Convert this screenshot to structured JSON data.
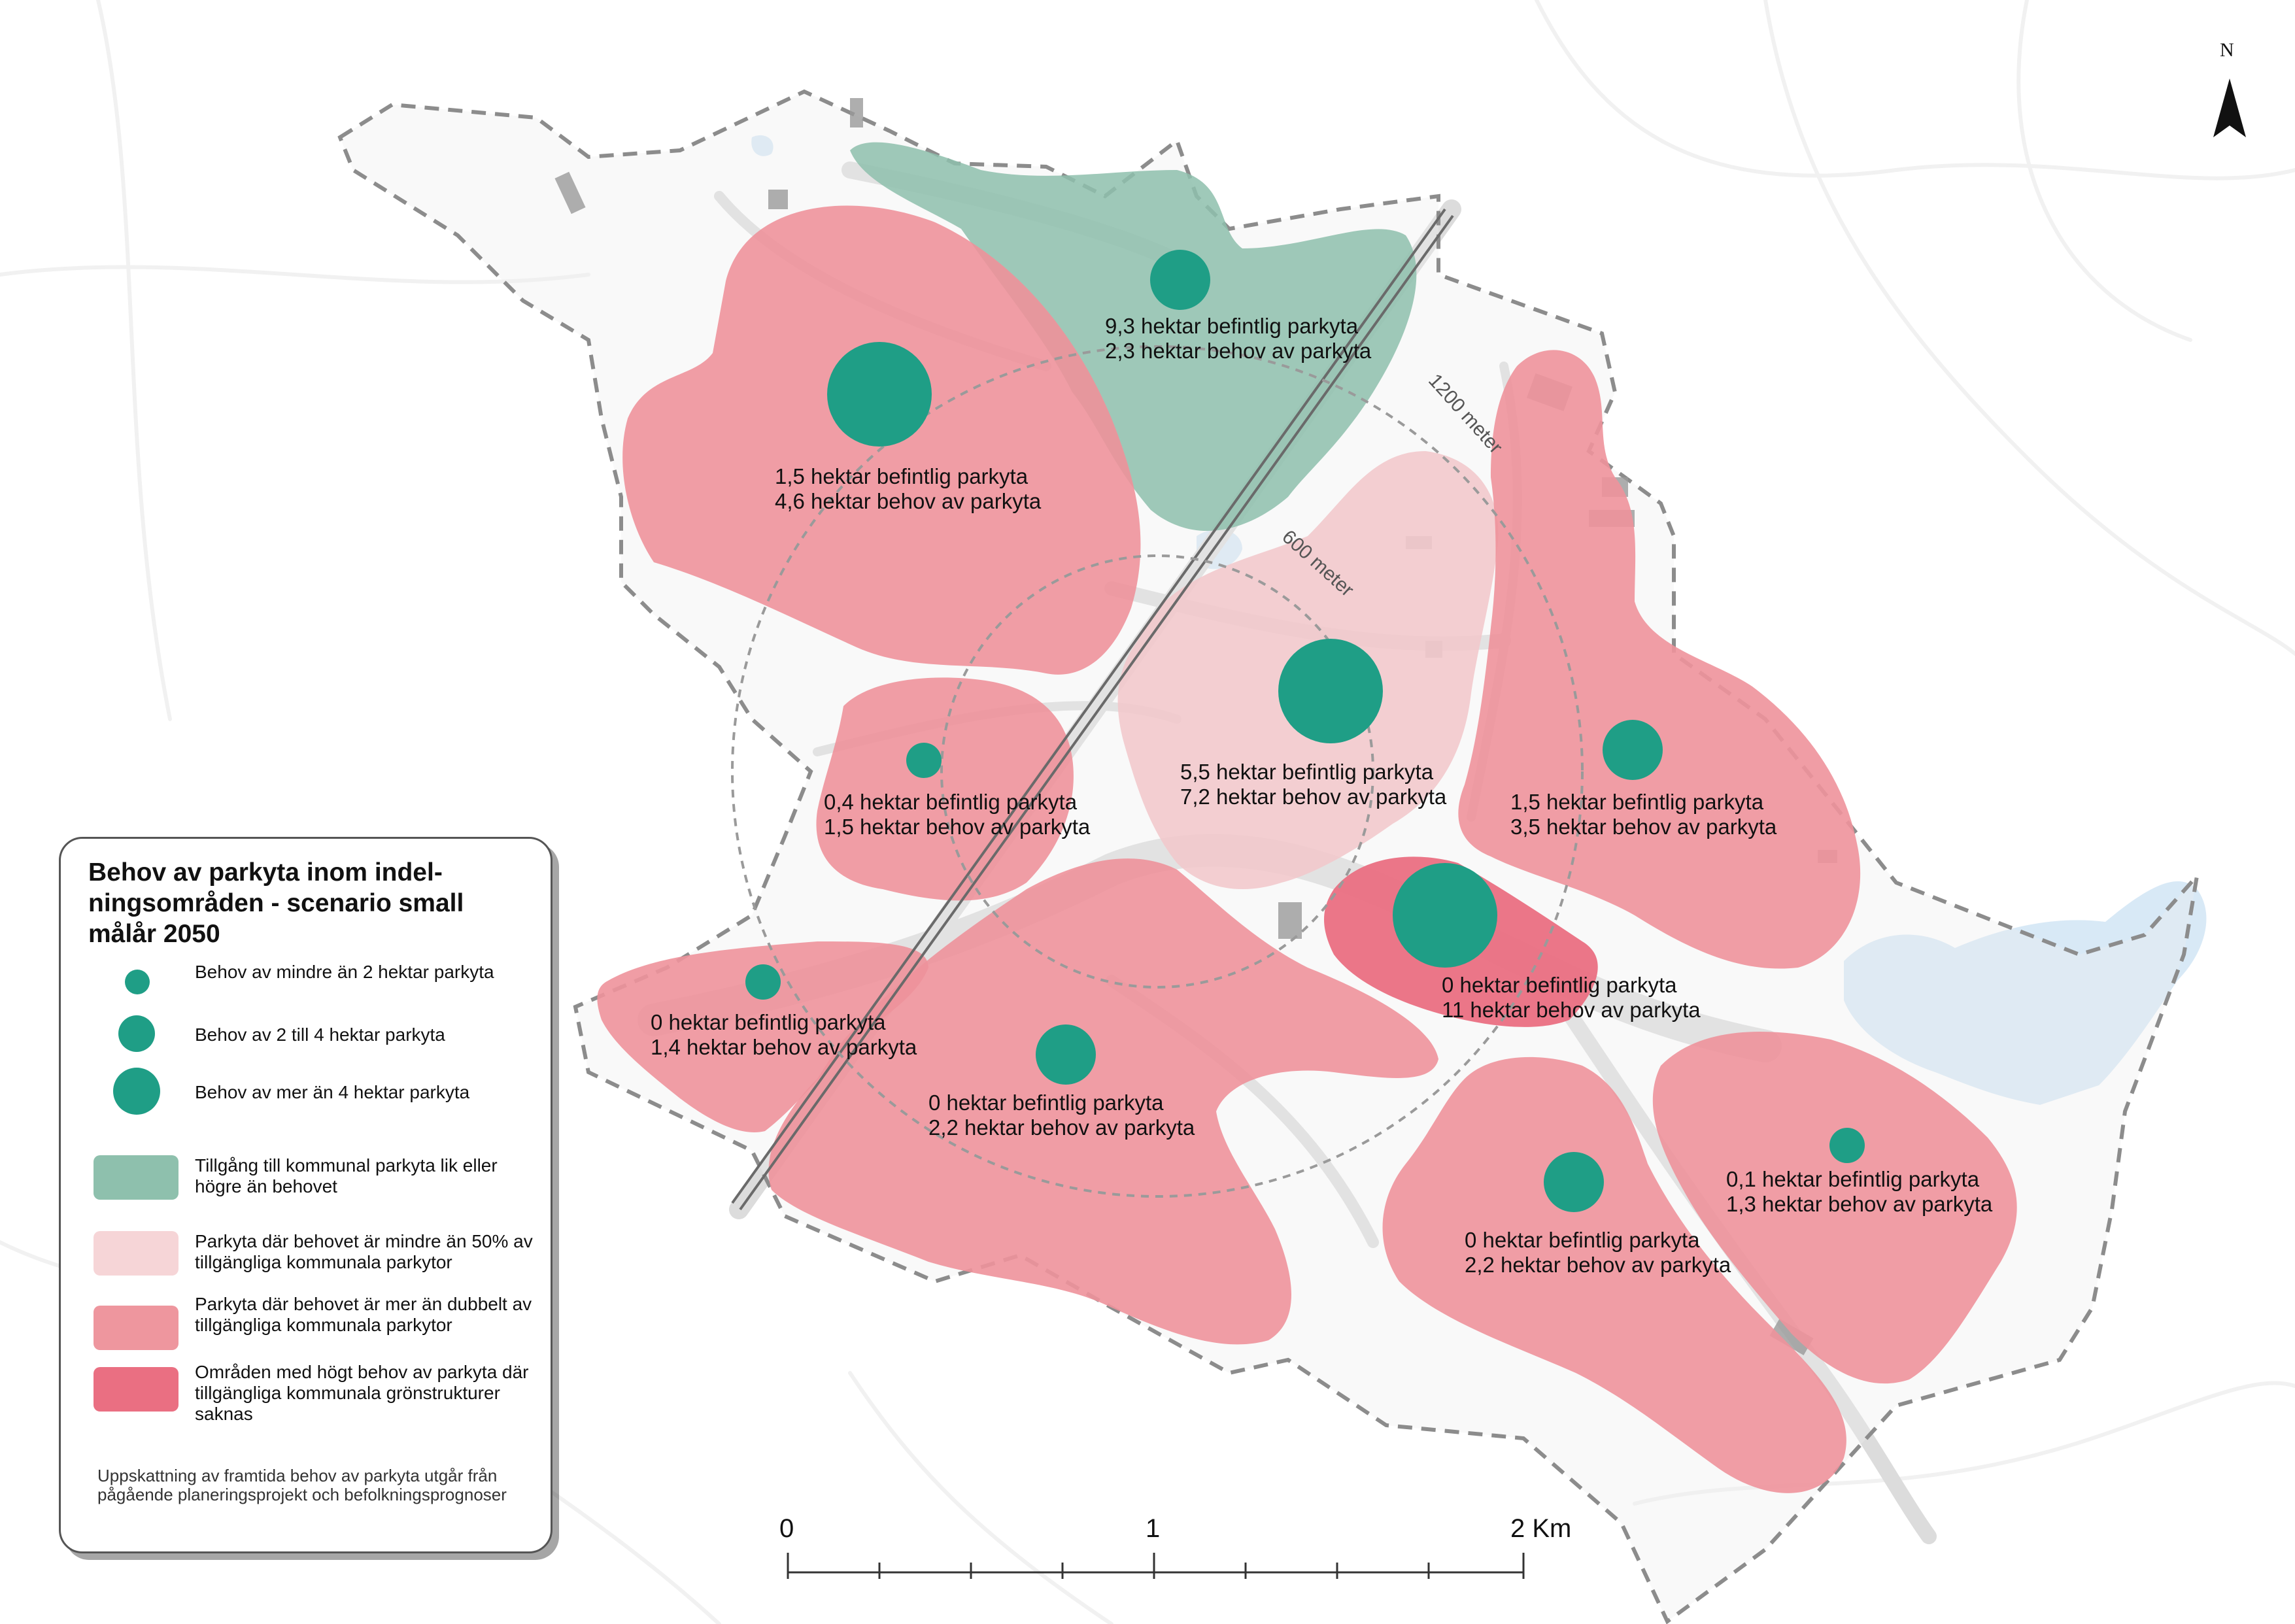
{
  "map": {
    "north_label": "N",
    "ring_labels": {
      "inner": "600 meter",
      "outer": "1200 meter"
    },
    "colors": {
      "background": "#ffffff",
      "road": "#dedede",
      "water": "#d8e9f6",
      "dashed_boundary": "#8c8c8c",
      "green_area": "#8ec0ad",
      "light_pink_area": "#f2c9cc",
      "pink_area": "#ee929b",
      "dark_pink_area": "#ea6f82",
      "circle": "#1f9e86"
    },
    "areas": [
      {
        "id": "north-green",
        "category": "green",
        "circle_size": "medium",
        "line1": "9,3 hektar befintlig parkyta",
        "line2": "2,3 hektar behov av parkyta"
      },
      {
        "id": "northwest",
        "category": "pink",
        "circle_size": "large",
        "line1": "1,5 hektar befintlig parkyta",
        "line2": "4,6 hektar behov av parkyta"
      },
      {
        "id": "center",
        "category": "light-pink",
        "circle_size": "large",
        "line1": "5,5 hektar befintlig parkyta",
        "line2": "7,2 hektar behov av parkyta"
      },
      {
        "id": "west-small",
        "category": "pink",
        "circle_size": "small",
        "line1": "0,4 hektar befintlig parkyta",
        "line2": "1,5 hektar behov av parkyta"
      },
      {
        "id": "east",
        "category": "pink",
        "circle_size": "medium",
        "line1": "1,5 hektar befintlig parkyta",
        "line2": "3,5 hektar behov av parkyta"
      },
      {
        "id": "center-south",
        "category": "dark-pink",
        "circle_size": "large",
        "line1": "0 hektar befintlig parkyta",
        "line2": "11 hektar behov av parkyta"
      },
      {
        "id": "southwest",
        "category": "pink",
        "circle_size": "small",
        "line1": "0 hektar befintlig parkyta",
        "line2": "1,4 hektar behov av parkyta"
      },
      {
        "id": "south",
        "category": "pink",
        "circle_size": "medium",
        "line1": "0 hektar befintlig parkyta",
        "line2": "2,2 hektar behov av parkyta"
      },
      {
        "id": "southeast",
        "category": "pink",
        "circle_size": "medium",
        "line1": "0 hektar befintlig parkyta",
        "line2": "2,2 hektar behov av parkyta"
      },
      {
        "id": "far-east",
        "category": "pink",
        "circle_size": "small",
        "line1": "0,1 hektar befintlig parkyta",
        "line2": "1,3 hektar behov av parkyta"
      }
    ]
  },
  "legend": {
    "title": "Behov av parkyta inom indel-ningsområden - scenario small målår 2050",
    "title_lines": [
      "Behov av parkyta inom indel-",
      "ningsområden - scenario small",
      "målår 2050"
    ],
    "circle_items": [
      {
        "size": "small",
        "label": "Behov av mindre än 2 hektar parkyta"
      },
      {
        "size": "medium",
        "label": "Behov av 2 till 4 hektar parkyta"
      },
      {
        "size": "large",
        "label": "Behov av mer än 4 hektar parkyta"
      }
    ],
    "swatch_items": [
      {
        "category": "green",
        "color": "#8ec0ad",
        "label": "Tillgång till kommunal parkyta lik eller högre än behovet"
      },
      {
        "category": "light-pink",
        "color": "#f6d5d7",
        "label": "Parkyta där behovet är mindre än 50% av tillgängliga kommunala parkytor"
      },
      {
        "category": "pink",
        "color": "#ee969e",
        "label": "Parkyta där behovet är mer än dubbelt av tillgängliga kommunala parkytor"
      },
      {
        "category": "dark-pink",
        "color": "#ea6f82",
        "label": "Områden med högt behov av parkyta där tillgängliga kommunala grönstrukturer saknas"
      }
    ],
    "note": "Uppskattning av framtida behov av parkyta utgår från pågående planeringsprojekt och befolkningsprognoser"
  },
  "scale_bar": {
    "labels": [
      "0",
      "1",
      "2 Km"
    ]
  }
}
